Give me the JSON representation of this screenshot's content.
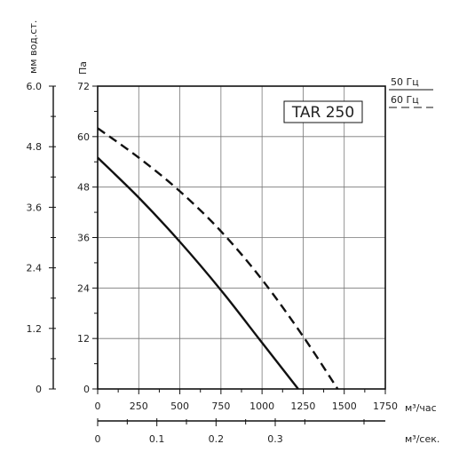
{
  "chart_data": {
    "type": "line",
    "title": "TAR 250",
    "x_axis": {
      "label": "м³/час",
      "ticks": [
        0,
        250,
        500,
        750,
        1000,
        1250,
        1500,
        1750
      ],
      "range": [
        0,
        1750
      ]
    },
    "x2_axis": {
      "label": "м³/сек.",
      "ticks": [
        0,
        0.1,
        0.2,
        0.3
      ],
      "tick_labels": [
        "0",
        "0.1",
        "0.2",
        "0.3"
      ],
      "range": [
        0,
        0.486
      ]
    },
    "y_axis": {
      "label": "Па",
      "ticks": [
        0,
        12,
        24,
        36,
        48,
        60,
        72
      ],
      "range": [
        0,
        72
      ]
    },
    "y2_axis": {
      "label": "мм вод.ст.",
      "ticks": [
        0,
        1.2,
        2.4,
        3.6,
        4.8,
        6.0
      ],
      "tick_labels": [
        "0",
        "1.2",
        "2.4",
        "3.6",
        "4.8",
        "6.0"
      ],
      "range": [
        0,
        6.0
      ]
    },
    "grid": true,
    "legend": {
      "placement": "top-right",
      "entries": [
        {
          "label": "50 Гц",
          "style": "solid"
        },
        {
          "label": "60 Гц",
          "style": "dashed"
        }
      ]
    },
    "series": [
      {
        "style": "solid",
        "x": [
          0,
          250,
          500,
          750,
          1000,
          1220
        ],
        "y": [
          55,
          45.5,
          35,
          23.5,
          11,
          0
        ]
      },
      {
        "style": "dashed",
        "x": [
          0,
          250,
          500,
          750,
          1000,
          1250,
          1460
        ],
        "y": [
          62,
          55,
          47,
          37.5,
          26,
          12.5,
          0
        ]
      }
    ]
  }
}
